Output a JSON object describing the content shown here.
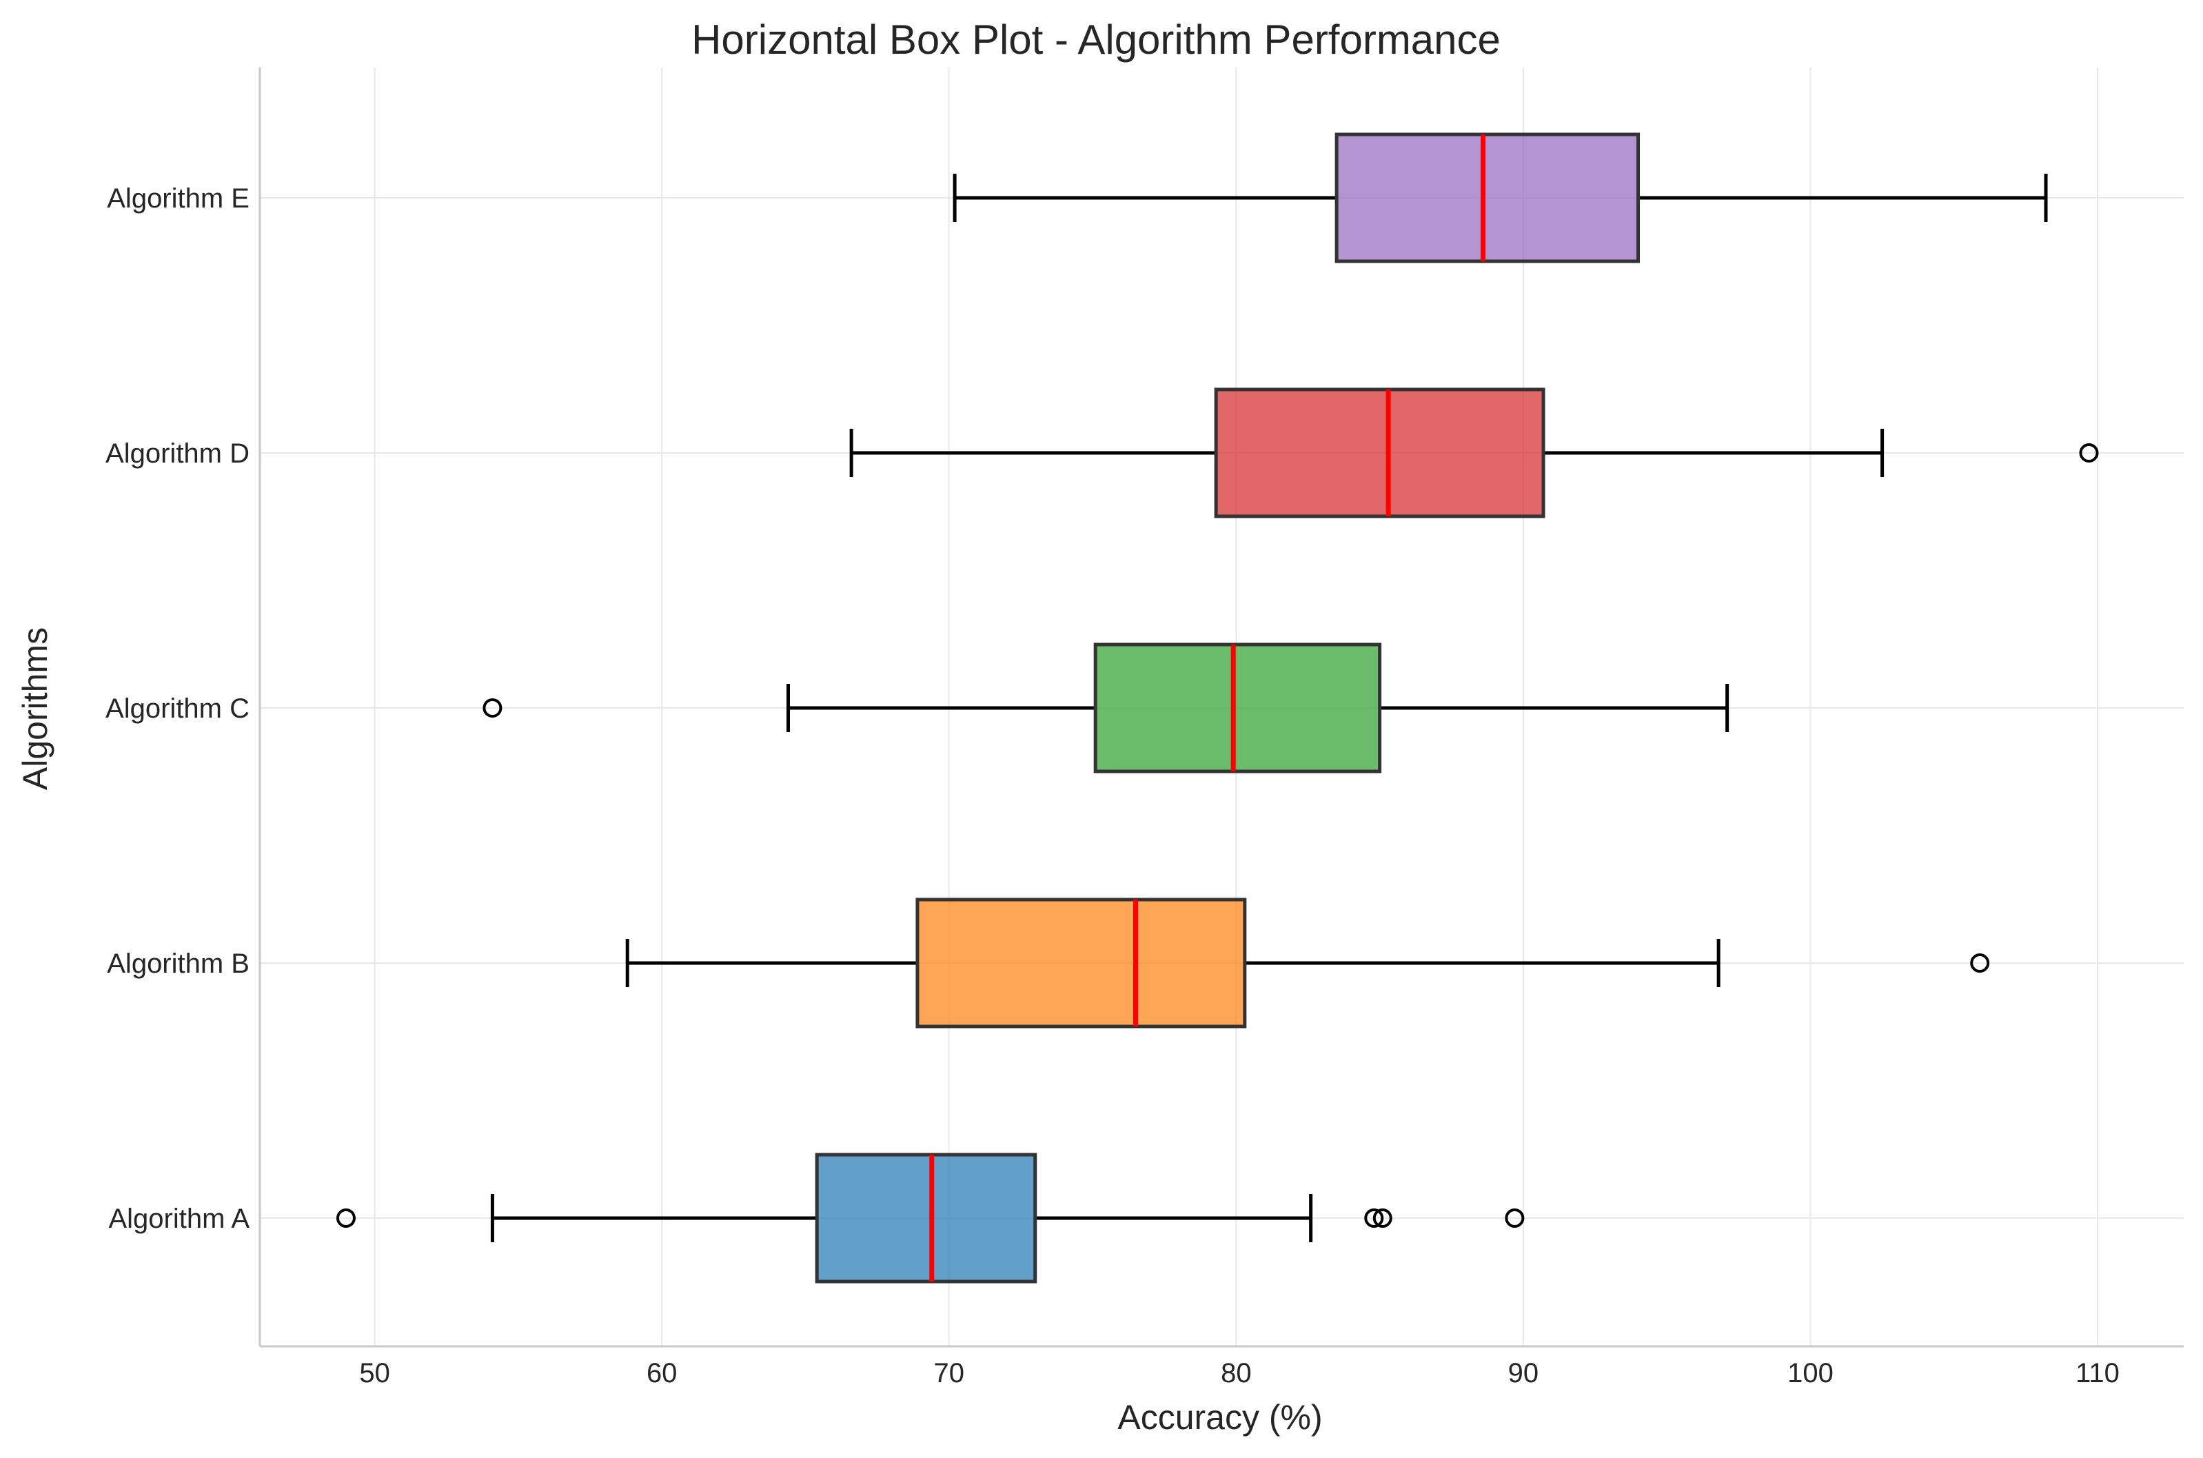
{
  "chart_data": {
    "type": "box",
    "orientation": "horizontal",
    "title": "Horizontal Box Plot - Algorithm Performance",
    "xlabel": "Accuracy (%)",
    "ylabel": "Algorithms",
    "xlim": [
      46,
      113
    ],
    "xticks": [
      50,
      60,
      70,
      80,
      90,
      100,
      110
    ],
    "grid": true,
    "median_color": "#ff0000",
    "series": [
      {
        "name": "Algorithm A",
        "color": "#1f77b4",
        "whisker_low": 54.1,
        "q1": 65.4,
        "median": 69.4,
        "q3": 73.0,
        "whisker_high": 82.6,
        "outliers": [
          49.0,
          84.8,
          85.1,
          89.7
        ]
      },
      {
        "name": "Algorithm B",
        "color": "#ff7f0e",
        "whisker_low": 58.8,
        "q1": 68.9,
        "median": 76.5,
        "q3": 80.3,
        "whisker_high": 96.8,
        "outliers": [
          105.9
        ]
      },
      {
        "name": "Algorithm C",
        "color": "#2ca02c",
        "whisker_low": 64.4,
        "q1": 75.1,
        "median": 79.9,
        "q3": 85.0,
        "whisker_high": 97.1,
        "outliers": [
          54.1
        ]
      },
      {
        "name": "Algorithm D",
        "color": "#d62728",
        "whisker_low": 66.6,
        "q1": 79.3,
        "median": 85.3,
        "q3": 90.7,
        "whisker_high": 102.5,
        "outliers": [
          109.7
        ]
      },
      {
        "name": "Algorithm E",
        "color": "#9467bd",
        "whisker_low": 70.2,
        "q1": 83.5,
        "median": 88.6,
        "q3": 94.0,
        "whisker_high": 108.2,
        "outliers": []
      }
    ]
  }
}
